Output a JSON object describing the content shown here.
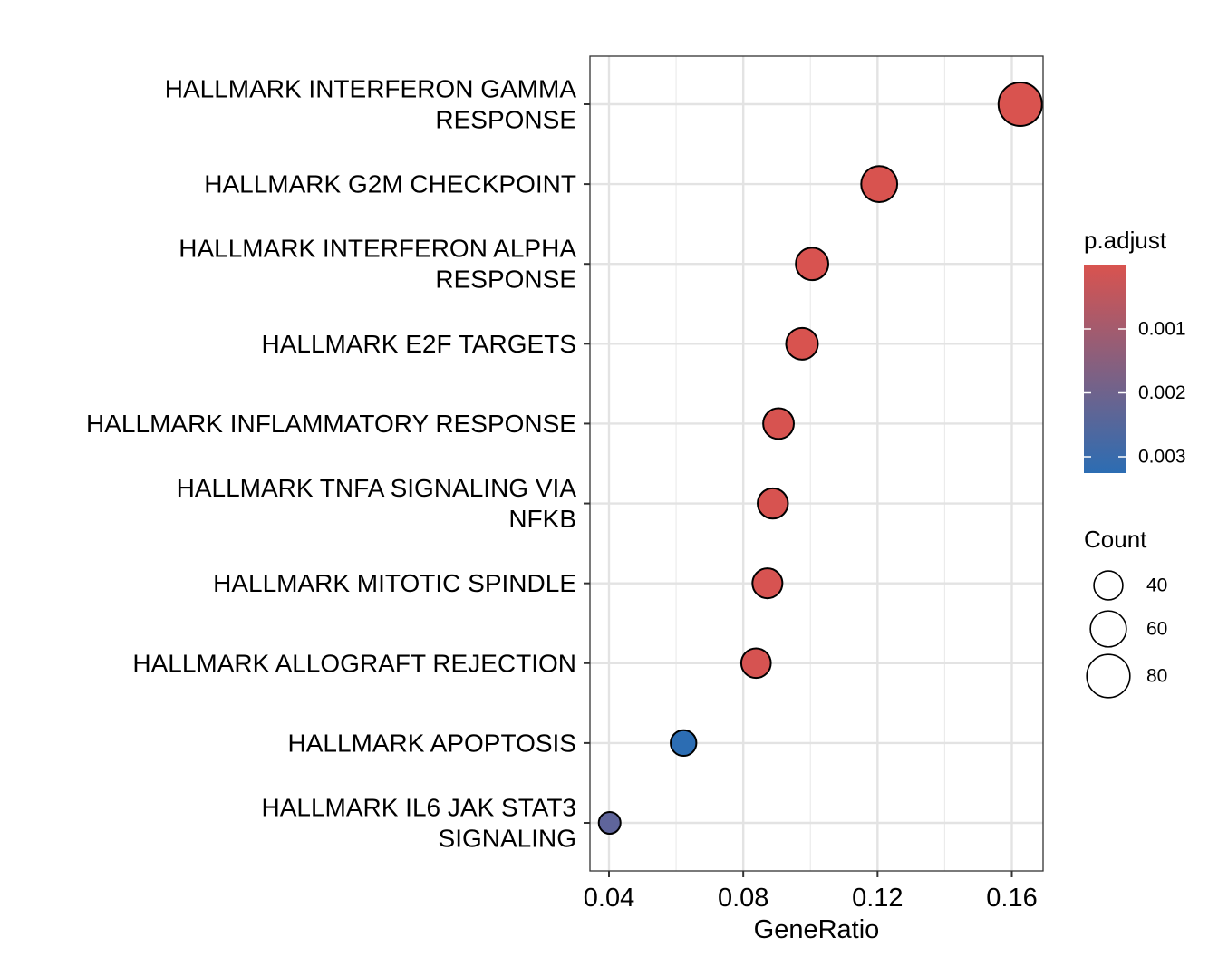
{
  "chart_data": {
    "type": "scatter",
    "xlabel": "GeneRatio",
    "xlim": [
      0.0355,
      0.1625
    ],
    "x_ticks": [
      0.04,
      0.08,
      0.12,
      0.16
    ],
    "x_tick_labels": [
      "0.04",
      "0.08",
      "0.12",
      "0.16"
    ],
    "points": [
      {
        "term": "HALLMARK INTERFERON GAMMA RESPONSE",
        "label_lines": [
          "HALLMARK INTERFERON GAMMA",
          "RESPONSE"
        ],
        "gene_ratio": 0.1625,
        "count": 81,
        "p_adjust": 1e-07
      },
      {
        "term": "HALLMARK G2M CHECKPOINT",
        "label_lines": [
          "HALLMARK G2M CHECKPOINT"
        ],
        "gene_ratio": 0.1205,
        "count": 60,
        "p_adjust": 1e-05
      },
      {
        "term": "HALLMARK INTERFERON ALPHA RESPONSE",
        "label_lines": [
          "HALLMARK INTERFERON ALPHA",
          "RESPONSE"
        ],
        "gene_ratio": 0.1005,
        "count": 50,
        "p_adjust": 2e-05
      },
      {
        "term": "HALLMARK E2F TARGETS",
        "label_lines": [
          "HALLMARK E2F TARGETS"
        ],
        "gene_ratio": 0.0975,
        "count": 48,
        "p_adjust": 1e-05
      },
      {
        "term": "HALLMARK INFLAMMATORY RESPONSE",
        "label_lines": [
          "HALLMARK INFLAMMATORY RESPONSE"
        ],
        "gene_ratio": 0.0905,
        "count": 45,
        "p_adjust": 3e-05
      },
      {
        "term": "HALLMARK TNFA SIGNALING VIA NFKB",
        "label_lines": [
          "HALLMARK TNFA SIGNALING VIA",
          "NFKB"
        ],
        "gene_ratio": 0.0888,
        "count": 44,
        "p_adjust": 3e-05
      },
      {
        "term": "HALLMARK MITOTIC SPINDLE",
        "label_lines": [
          "HALLMARK MITOTIC SPINDLE"
        ],
        "gene_ratio": 0.0872,
        "count": 43,
        "p_adjust": 4e-05
      },
      {
        "term": "HALLMARK ALLOGRAFT REJECTION",
        "label_lines": [
          "HALLMARK ALLOGRAFT REJECTION"
        ],
        "gene_ratio": 0.0838,
        "count": 42,
        "p_adjust": 5e-05
      },
      {
        "term": "HALLMARK APOPTOSIS",
        "label_lines": [
          "HALLMARK APOPTOSIS"
        ],
        "gene_ratio": 0.0622,
        "count": 31,
        "p_adjust": 0.0029
      },
      {
        "term": "HALLMARK IL6 JAK STAT3 SIGNALING",
        "label_lines": [
          "HALLMARK IL6 JAK STAT3",
          "SIGNALING"
        ],
        "gene_ratio": 0.0402,
        "count": 20,
        "p_adjust": 0.0021
      }
    ],
    "color_legend": {
      "title": "p.adjust",
      "range": [
        1e-07,
        0.0029
      ],
      "ticks": [
        0.001,
        0.002,
        0.003
      ],
      "tick_labels": [
        "0.001",
        "0.002",
        "0.003"
      ],
      "low_color": "#d9534f",
      "high_color": "#2c6db3"
    },
    "size_legend": {
      "title": "Count",
      "values": [
        40,
        60,
        80
      ],
      "labels": [
        "40",
        "60",
        "80"
      ]
    },
    "grid": true,
    "legend_position": "right"
  }
}
